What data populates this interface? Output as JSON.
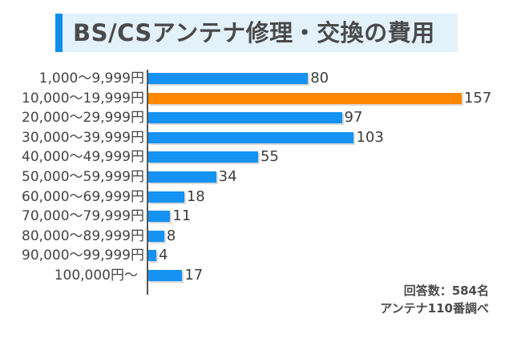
{
  "title": "BS/CSアンテナ修理・交換の費用",
  "colors": {
    "title_bg": "#e3f1fb",
    "title_stripe": "#0e8ff0",
    "bar_default": "#1592f2",
    "bar_highlight": "#ff8800",
    "axis": "#555555",
    "text": "#444444"
  },
  "note": {
    "respondents": "回答数：584名",
    "source": "アンテナ110番調べ"
  },
  "chart_data": {
    "type": "bar",
    "orientation": "horizontal",
    "title": "BS/CSアンテナ修理・交換の費用",
    "xlabel": "",
    "ylabel": "",
    "categories": [
      "1,000〜9,999円",
      "10,000〜19,999円",
      "20,000〜29,999円",
      "30,000〜39,999円",
      "40,000〜49,999円",
      "50,000〜59,999円",
      "60,000〜69,999円",
      "70,000〜79,999円",
      "80,000〜89,999円",
      "90,000〜99,999円",
      "100,000円〜"
    ],
    "values": [
      80,
      157,
      97,
      103,
      55,
      34,
      18,
      11,
      8,
      4,
      17
    ],
    "highlight_index": 1,
    "grid": false,
    "legend": null,
    "annotations": [
      "回答数：584名",
      "アンテナ110番調べ"
    ],
    "total_respondents": 584
  }
}
